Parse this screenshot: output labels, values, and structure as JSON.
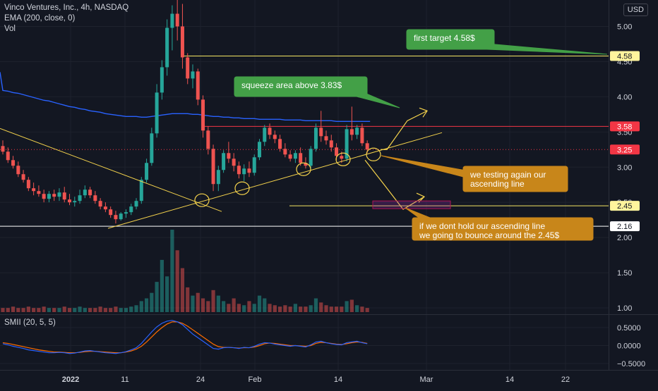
{
  "legend": {
    "symbol_line": "Vinco Ventures, Inc., 4h, NASDAQ",
    "ema_line": "EMA (200, close, 0)",
    "vol_line": "Vol",
    "smii_line": "SMII (20, 5, 5)"
  },
  "currency": "USD",
  "price_labels": [
    {
      "text": "4.58",
      "value": 4.58,
      "color": "#fff59d"
    },
    {
      "text": "3.58",
      "value": 3.58,
      "color": "#f23645"
    },
    {
      "text": "3.25",
      "value": 3.25,
      "color": "#f23645"
    },
    {
      "text": "2.45",
      "value": 2.45,
      "color": "#fff59d"
    },
    {
      "text": "2.16",
      "value": 2.16,
      "color": "#ffffff"
    }
  ],
  "colors": {
    "up": "#26a69a",
    "down": "#ef5350",
    "ema": "#2962ff",
    "smii": "#2962ff",
    "signal": "#ff6d00",
    "annot": "#f5d34c"
  },
  "annotations": [
    {
      "text": "first target 4.58$",
      "color": "#43a047"
    },
    {
      "text": "squeeze area above 3.83$",
      "color": "#43a047"
    },
    {
      "text": "we testing again our",
      "color": "#c8861a"
    },
    {
      "text": "ascending line",
      "color": "#c8861a"
    },
    {
      "text": "if we dont hold our ascending line",
      "color": "#c8861a"
    },
    {
      "text": "we going to bounce around the 2.45$",
      "color": "#c8861a"
    }
  ],
  "chart_data": {
    "type": "candlestick",
    "price_axis_ticks": [
      "5.00",
      "4.50",
      "4.00",
      "3.50",
      "3.00",
      "2.50",
      "2.00",
      "1.50",
      "1.00"
    ],
    "price_axis_values": [
      5.0,
      4.5,
      4.0,
      3.5,
      3.0,
      2.5,
      2.0,
      1.5,
      1.0
    ],
    "price_ylim": [
      0.95,
      5.5
    ],
    "smii_axis_ticks": [
      "0.5000",
      "0.0000",
      "−0.5000"
    ],
    "smii_axis_values": [
      0.5,
      0.0,
      -0.5
    ],
    "smii_ylim": [
      -0.72,
      0.75
    ],
    "time_ticks": [
      {
        "label": "2022",
        "bold": true
      },
      {
        "label": "11",
        "bold": false
      },
      {
        "label": "24",
        "bold": false
      },
      {
        "label": "Feb",
        "bold": false
      },
      {
        "label": "14",
        "bold": false
      },
      {
        "label": "Mar",
        "bold": false
      },
      {
        "label": "14",
        "bold": false
      },
      {
        "label": "22",
        "bold": false
      }
    ],
    "candles": [
      [
        3.3,
        3.38,
        3.18,
        3.22
      ],
      [
        3.22,
        3.28,
        3.06,
        3.1
      ],
      [
        3.1,
        3.16,
        2.98,
        3.02
      ],
      [
        3.02,
        3.08,
        2.86,
        2.9
      ],
      [
        2.9,
        2.96,
        2.78,
        2.82
      ],
      [
        2.82,
        2.86,
        2.66,
        2.7
      ],
      [
        2.7,
        2.78,
        2.6,
        2.66
      ],
      [
        2.66,
        2.74,
        2.58,
        2.62
      ],
      [
        2.62,
        2.68,
        2.5,
        2.55
      ],
      [
        2.55,
        2.66,
        2.5,
        2.62
      ],
      [
        2.62,
        2.68,
        2.52,
        2.58
      ],
      [
        2.58,
        2.7,
        2.52,
        2.64
      ],
      [
        2.64,
        2.72,
        2.5,
        2.54
      ],
      [
        2.54,
        2.62,
        2.46,
        2.5
      ],
      [
        2.5,
        2.58,
        2.44,
        2.52
      ],
      [
        2.52,
        2.68,
        2.48,
        2.6
      ],
      [
        2.6,
        2.74,
        2.56,
        2.68
      ],
      [
        2.68,
        2.72,
        2.56,
        2.6
      ],
      [
        2.6,
        2.66,
        2.48,
        2.52
      ],
      [
        2.52,
        2.56,
        2.4,
        2.44
      ],
      [
        2.44,
        2.5,
        2.36,
        2.4
      ],
      [
        2.4,
        2.44,
        2.28,
        2.32
      ],
      [
        2.32,
        2.38,
        2.2,
        2.26
      ],
      [
        2.26,
        2.36,
        2.24,
        2.34
      ],
      [
        2.34,
        2.4,
        2.28,
        2.36
      ],
      [
        2.36,
        2.48,
        2.32,
        2.44
      ],
      [
        2.44,
        2.56,
        2.4,
        2.52
      ],
      [
        2.52,
        2.86,
        2.48,
        2.82
      ],
      [
        2.82,
        3.12,
        2.78,
        3.06
      ],
      [
        3.06,
        3.56,
        3.02,
        3.48
      ],
      [
        3.48,
        4.18,
        3.42,
        4.06
      ],
      [
        4.06,
        4.52,
        3.96,
        4.42
      ],
      [
        4.42,
        5.1,
        4.3,
        4.98
      ],
      [
        4.98,
        5.3,
        4.66,
        5.18
      ],
      [
        5.18,
        5.42,
        4.8,
        5.0
      ],
      [
        5.0,
        5.32,
        4.4,
        4.56
      ],
      [
        4.56,
        4.62,
        4.18,
        4.26
      ],
      [
        4.26,
        4.46,
        4.12,
        4.36
      ],
      [
        4.36,
        4.4,
        3.88,
        3.96
      ],
      [
        3.96,
        4.02,
        3.42,
        3.52
      ],
      [
        3.52,
        3.58,
        3.18,
        3.26
      ],
      [
        3.26,
        3.32,
        2.66,
        2.76
      ],
      [
        2.76,
        3.02,
        2.66,
        2.96
      ],
      [
        2.96,
        3.24,
        2.92,
        3.2
      ],
      [
        3.2,
        3.36,
        3.06,
        3.12
      ],
      [
        3.12,
        3.2,
        2.94,
        3.02
      ],
      [
        3.02,
        3.08,
        2.84,
        2.9
      ],
      [
        2.9,
        3.04,
        2.8,
        2.98
      ],
      [
        2.98,
        3.08,
        2.86,
        2.92
      ],
      [
        2.92,
        3.18,
        2.88,
        3.14
      ],
      [
        3.14,
        3.4,
        3.1,
        3.36
      ],
      [
        3.36,
        3.6,
        3.3,
        3.56
      ],
      [
        3.56,
        3.62,
        3.4,
        3.46
      ],
      [
        3.46,
        3.52,
        3.34,
        3.4
      ],
      [
        3.4,
        3.46,
        3.22,
        3.26
      ],
      [
        3.26,
        3.34,
        3.14,
        3.18
      ],
      [
        3.18,
        3.24,
        3.08,
        3.12
      ],
      [
        3.12,
        3.24,
        3.06,
        3.2
      ],
      [
        3.2,
        3.28,
        3.02,
        3.06
      ],
      [
        3.06,
        3.14,
        2.98,
        3.02
      ],
      [
        3.02,
        3.3,
        2.98,
        3.26
      ],
      [
        3.26,
        3.62,
        3.22,
        3.56
      ],
      [
        3.56,
        3.8,
        3.36,
        3.44
      ],
      [
        3.44,
        3.52,
        3.32,
        3.38
      ],
      [
        3.38,
        3.46,
        3.22,
        3.28
      ],
      [
        3.28,
        3.34,
        3.1,
        3.16
      ],
      [
        3.16,
        3.22,
        3.06,
        3.12
      ],
      [
        3.12,
        3.6,
        3.08,
        3.54
      ],
      [
        3.54,
        3.86,
        3.38,
        3.46
      ],
      [
        3.46,
        3.6,
        3.4,
        3.56
      ],
      [
        3.56,
        3.62,
        3.3,
        3.34
      ],
      [
        3.34,
        3.38,
        3.2,
        3.25
      ]
    ],
    "volume": [
      0.03,
      0.03,
      0.04,
      0.03,
      0.03,
      0.04,
      0.03,
      0.03,
      0.04,
      0.03,
      0.03,
      0.03,
      0.04,
      0.03,
      0.03,
      0.04,
      0.03,
      0.03,
      0.03,
      0.04,
      0.03,
      0.03,
      0.04,
      0.03,
      0.03,
      0.04,
      0.05,
      0.08,
      0.1,
      0.14,
      0.22,
      0.38,
      0.26,
      0.6,
      0.45,
      0.32,
      0.18,
      0.12,
      0.14,
      0.1,
      0.08,
      0.16,
      0.12,
      0.08,
      0.06,
      0.1,
      0.06,
      0.05,
      0.08,
      0.06,
      0.12,
      0.1,
      0.06,
      0.05,
      0.04,
      0.05,
      0.04,
      0.06,
      0.04,
      0.04,
      0.05,
      0.1,
      0.07,
      0.05,
      0.04,
      0.04,
      0.04,
      0.08,
      0.09,
      0.05,
      0.04,
      0.03
    ],
    "ema": [
      4.09,
      4.08,
      4.06,
      4.05,
      4.03,
      4.01,
      3.99,
      3.97,
      3.95,
      3.94,
      3.92,
      3.9,
      3.88,
      3.86,
      3.85,
      3.83,
      3.82,
      3.8,
      3.79,
      3.78,
      3.76,
      3.75,
      3.74,
      3.73,
      3.72,
      3.72,
      3.72,
      3.71,
      3.71,
      3.72,
      3.73,
      3.74,
      3.75,
      3.76,
      3.76,
      3.76,
      3.76,
      3.75,
      3.75,
      3.74,
      3.73,
      3.72,
      3.72,
      3.71,
      3.71,
      3.7,
      3.7,
      3.69,
      3.69,
      3.69,
      3.68,
      3.68,
      3.68,
      3.68,
      3.68,
      3.67,
      3.67,
      3.67,
      3.67,
      3.66,
      3.66,
      3.66,
      3.66,
      3.66,
      3.66,
      3.65,
      3.65,
      3.65,
      3.65,
      3.65,
      3.65,
      3.65
    ],
    "smii": [
      0.05,
      0.02,
      -0.02,
      -0.05,
      -0.08,
      -0.12,
      -0.14,
      -0.16,
      -0.18,
      -0.2,
      -0.2,
      -0.19,
      -0.2,
      -0.22,
      -0.21,
      -0.18,
      -0.15,
      -0.14,
      -0.16,
      -0.18,
      -0.2,
      -0.21,
      -0.22,
      -0.2,
      -0.17,
      -0.12,
      -0.06,
      0.06,
      0.22,
      0.38,
      0.52,
      0.62,
      0.68,
      0.7,
      0.66,
      0.58,
      0.45,
      0.32,
      0.22,
      0.12,
      0.02,
      -0.08,
      -0.1,
      -0.06,
      -0.05,
      -0.06,
      -0.08,
      -0.05,
      -0.06,
      -0.02,
      0.04,
      0.08,
      0.07,
      0.04,
      0.02,
      0.0,
      -0.02,
      0.0,
      -0.02,
      -0.04,
      0.02,
      0.1,
      0.12,
      0.08,
      0.05,
      0.03,
      0.02,
      0.08,
      0.1,
      0.12,
      0.08,
      0.05
    ],
    "signal": [
      0.08,
      0.06,
      0.03,
      0.0,
      -0.03,
      -0.06,
      -0.09,
      -0.12,
      -0.14,
      -0.16,
      -0.18,
      -0.18,
      -0.19,
      -0.2,
      -0.2,
      -0.19,
      -0.17,
      -0.16,
      -0.16,
      -0.17,
      -0.18,
      -0.19,
      -0.2,
      -0.2,
      -0.18,
      -0.15,
      -0.1,
      -0.02,
      0.1,
      0.24,
      0.38,
      0.5,
      0.6,
      0.66,
      0.66,
      0.62,
      0.54,
      0.44,
      0.34,
      0.24,
      0.14,
      0.04,
      -0.03,
      -0.05,
      -0.05,
      -0.06,
      -0.07,
      -0.06,
      -0.06,
      -0.04,
      0.0,
      0.05,
      0.07,
      0.06,
      0.04,
      0.02,
      0.0,
      0.0,
      -0.01,
      -0.02,
      0.0,
      0.06,
      0.09,
      0.08,
      0.06,
      0.04,
      0.03,
      0.05,
      0.08,
      0.1,
      0.09,
      0.06
    ]
  }
}
